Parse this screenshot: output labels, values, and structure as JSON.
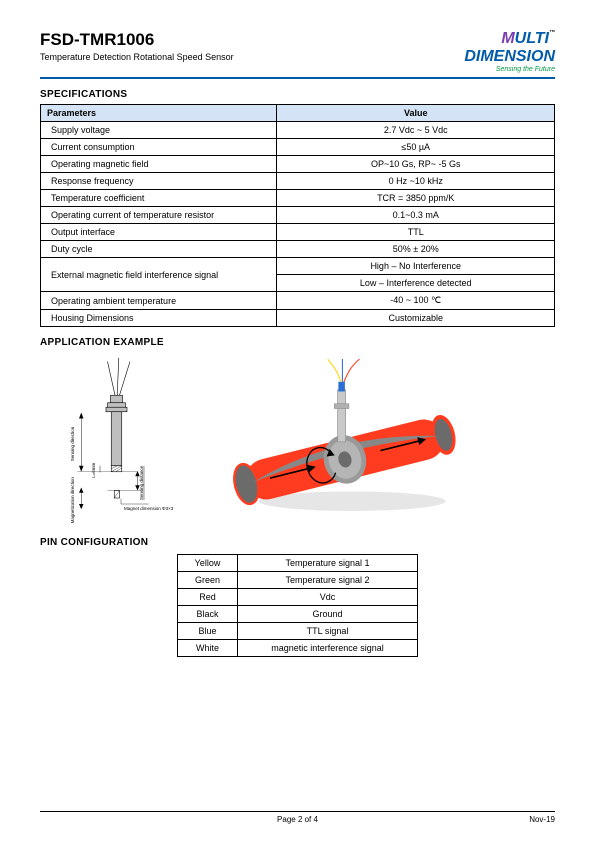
{
  "header": {
    "title": "FSD-TMR1006",
    "subtitle": "Temperature Detection Rotational Speed Sensor",
    "logo_m": "M",
    "logo_rest": "ULTI",
    "logo_line2": "DIMENSION",
    "logo_tm": "™",
    "logo_slogan": "Sensing the Future"
  },
  "sections": {
    "specs": "SPECIFICATIONS",
    "app": "APPLICATION EXAMPLE",
    "pin": "PIN CONFIGURATION"
  },
  "spec_table": {
    "head_param": "Parameters",
    "head_value": "Value",
    "rows": [
      {
        "p": "Supply voltage",
        "v": "2.7 Vdc ~ 5 Vdc"
      },
      {
        "p": "Current consumption",
        "v": "≤50 µA"
      },
      {
        "p": "Operating magnetic field",
        "v": "OP~10 Gs, RP~ -5 Gs"
      },
      {
        "p": "Response frequency",
        "v": "0 Hz ~10 kHz"
      },
      {
        "p": "Temperature coefficient",
        "v": "TCR = 3850 ppm/K"
      },
      {
        "p": "Operating current of temperature resistor",
        "v": "0.1~0.3 mA"
      },
      {
        "p": "Output interface",
        "v": "TTL"
      },
      {
        "p": "Duty cycle",
        "v": "50%  ± 20%"
      },
      {
        "p": "External magnetic field interference signal",
        "v": "High – No Interference\nLow – Interference detected"
      },
      {
        "p": "Operating ambient temperature",
        "v": "-40 ~ 100 ℃"
      },
      {
        "p": "Housing Dimensions",
        "v": "Customizable"
      }
    ]
  },
  "diagram": {
    "sensing_direction": "Sensing direction",
    "magnet_direction": "Magnetization direction",
    "sensing_distance": "Sensing distance",
    "l_label": "L=6mm",
    "magnet_dim": "Magnet dimension Φ3×3",
    "colors": {
      "body": "#bfbfbf",
      "outline": "#000000",
      "background": "#ffffff"
    }
  },
  "app_image": {
    "pipe_outer": "#ff3c1f",
    "pipe_inner": "#6b6b6b",
    "pipe_highlight": "#b0b0b0",
    "sensor_body": "#c9c9c9",
    "wire1": "#ffd400",
    "wire2": "#2a6fd6",
    "wire3": "#ff3c1f",
    "arrow": "#000000",
    "shadow": "#cfcfcf"
  },
  "pin_table": {
    "rows": [
      {
        "c": "Yellow",
        "s": "Temperature signal 1"
      },
      {
        "c": "Green",
        "s": "Temperature signal 2"
      },
      {
        "c": "Red",
        "s": "Vdc"
      },
      {
        "c": "Black",
        "s": "Ground"
      },
      {
        "c": "Blue",
        "s": "TTL signal"
      },
      {
        "c": "White",
        "s": "magnetic interference signal"
      }
    ]
  },
  "footer": {
    "page": "Page 2 of 4",
    "date": "Nov-19"
  }
}
